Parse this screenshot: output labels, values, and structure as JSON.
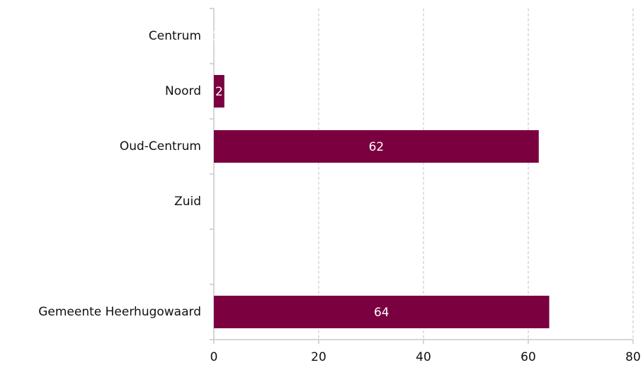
{
  "chart_data": {
    "type": "hbar",
    "categories": [
      "Centrum",
      "Noord",
      "Oud-Centrum",
      "Zuid",
      null,
      "Gemeente Heerhugowaard"
    ],
    "values": [
      0,
      2,
      62,
      null,
      null,
      64
    ],
    "color": "#7a0040",
    "xlim": [
      0,
      80
    ],
    "xticks": [
      0,
      20,
      40,
      60,
      80
    ],
    "grid": true
  }
}
